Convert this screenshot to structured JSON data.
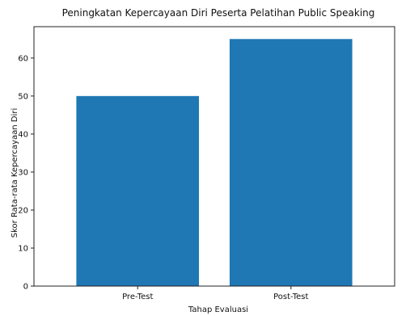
{
  "chart_data": {
    "type": "bar",
    "title": "Peningkatan Kepercayaan Diri Peserta Pelatihan Public Speaking",
    "xlabel": "Tahap Evaluasi",
    "ylabel": "Skor Rata-rata Kepercayaan Diri",
    "categories": [
      "Pre-Test",
      "Post-Test"
    ],
    "values": [
      50,
      65
    ],
    "ylim": [
      0,
      68.25
    ],
    "yticks": [
      0,
      10,
      20,
      30,
      40,
      50,
      60
    ],
    "bar_color": "#1f77b4",
    "grid": false,
    "legend": "none"
  }
}
